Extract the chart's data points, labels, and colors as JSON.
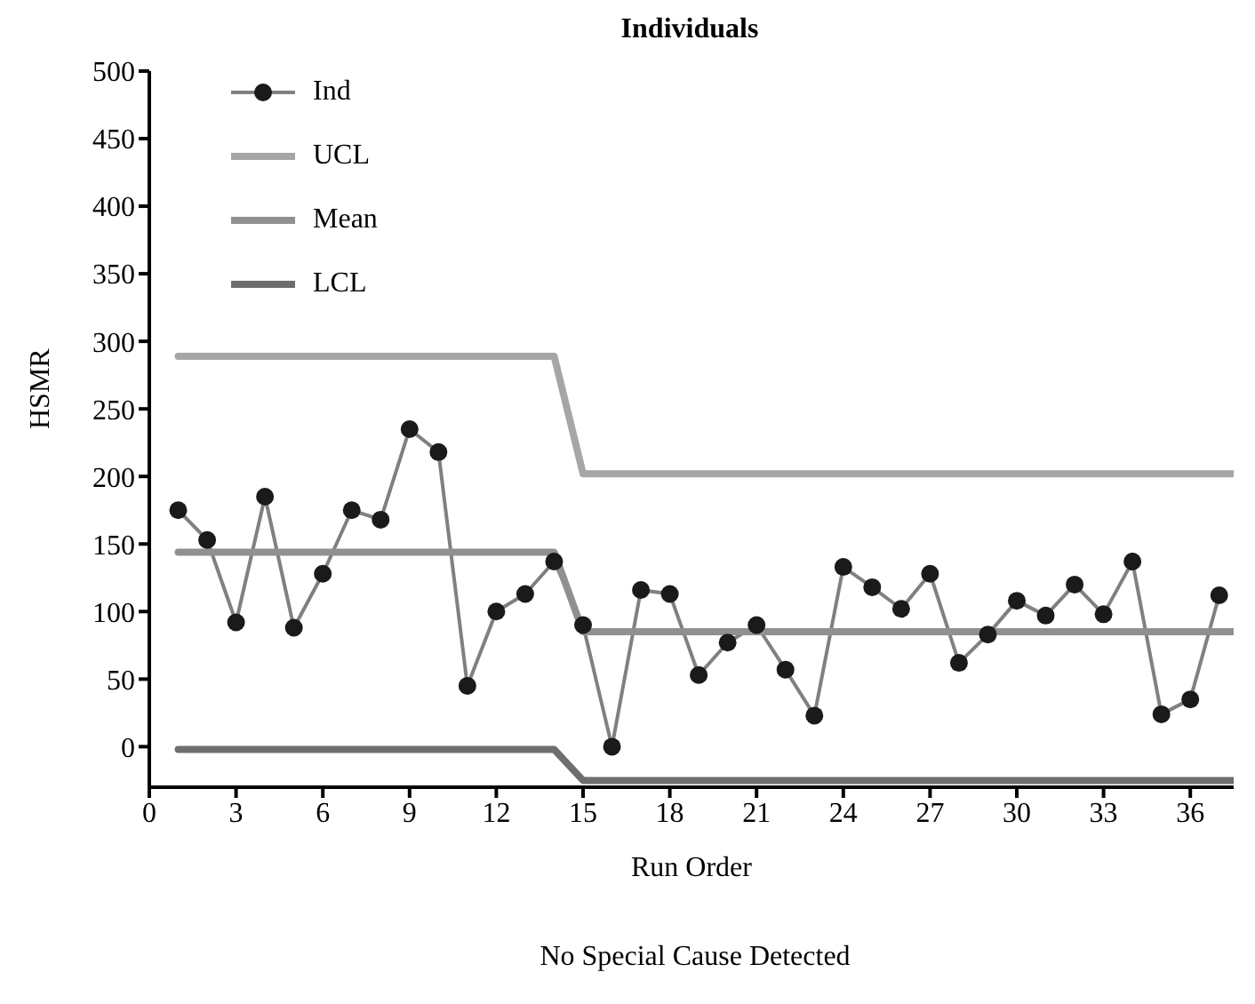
{
  "chart_data": {
    "type": "line",
    "title": "Individuals",
    "xlabel": "Run Order",
    "ylabel": "HSMR",
    "annotations": [
      "No Special Cause Detected"
    ],
    "xlim": [
      0,
      37.5
    ],
    "xticks": [
      0,
      3,
      6,
      9,
      12,
      15,
      18,
      21,
      24,
      27,
      30,
      33,
      36
    ],
    "ylim": [
      -30,
      500
    ],
    "yticks": [
      0,
      50,
      100,
      150,
      200,
      250,
      300,
      350,
      400,
      450,
      500
    ],
    "grid": false,
    "legend": "top left",
    "marker": "circle",
    "line_style": "solid",
    "series": [
      {
        "name": "Ind",
        "color": "#1a1a1a",
        "x": [
          1,
          2,
          3,
          4,
          5,
          6,
          7,
          8,
          9,
          10,
          11,
          12,
          13,
          14,
          15,
          16,
          17,
          18,
          19,
          20,
          21,
          22,
          23,
          24,
          25,
          26,
          27,
          28,
          29,
          30,
          31,
          32,
          33,
          34,
          35,
          36,
          37
        ],
        "values": [
          175,
          153,
          92,
          185,
          88,
          128,
          175,
          168,
          235,
          218,
          45,
          100,
          113,
          137,
          90,
          0,
          116,
          113,
          53,
          77,
          90,
          57,
          23,
          133,
          118,
          102,
          128,
          62,
          83,
          108,
          97,
          120,
          98,
          137,
          24,
          35,
          112
        ]
      },
      {
        "name": "UCL",
        "type": "line",
        "marker": "none",
        "color": "#a6a6a6",
        "x": [
          1,
          14,
          15,
          37.5
        ],
        "values": [
          289,
          289,
          202,
          202
        ]
      },
      {
        "name": "Mean",
        "type": "line",
        "marker": "none",
        "color": "#909090",
        "x": [
          1,
          14,
          15,
          37.5
        ],
        "values": [
          144,
          144,
          85,
          85
        ]
      },
      {
        "name": "LCL",
        "type": "line",
        "marker": "none",
        "color": "#6e6e6e",
        "x": [
          1,
          14,
          15,
          37.5
        ],
        "values": [
          -2,
          -2,
          -25,
          -25
        ]
      }
    ]
  }
}
